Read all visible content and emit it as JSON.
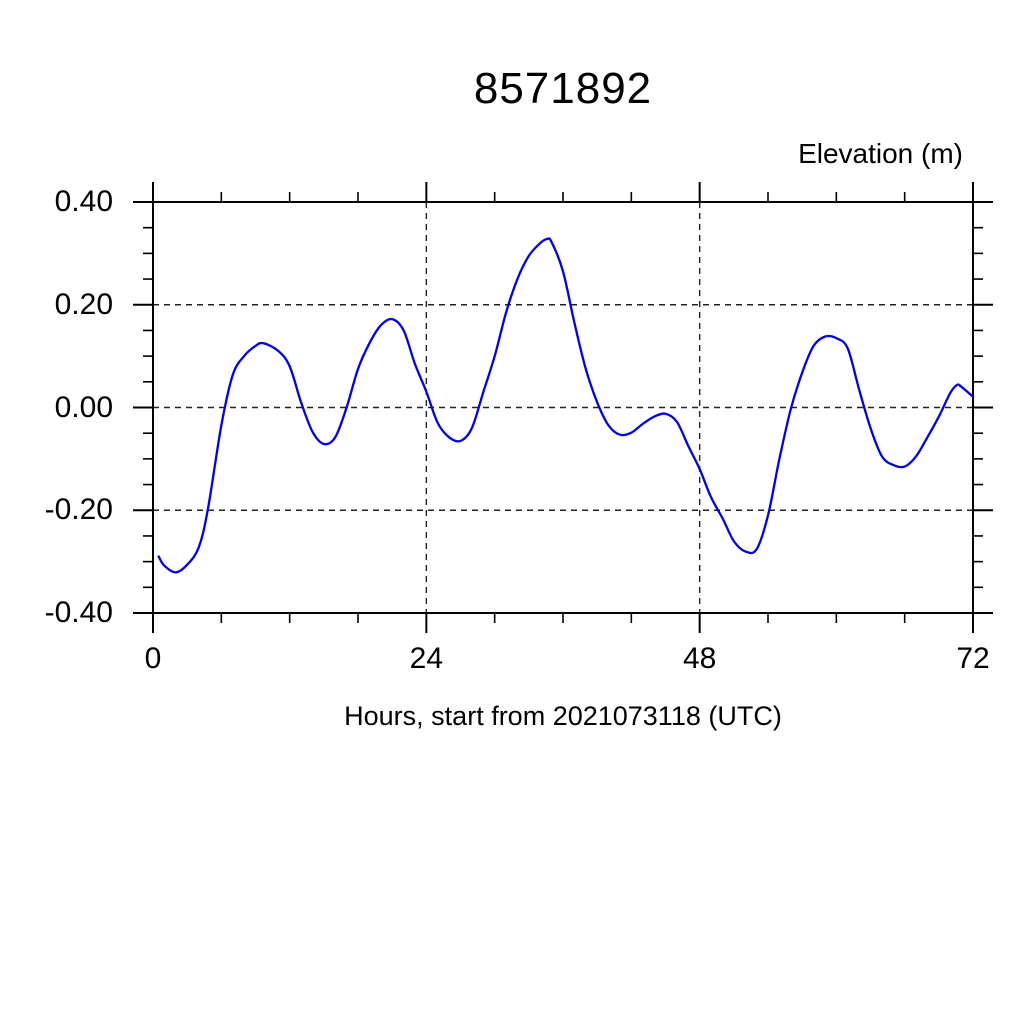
{
  "page": {
    "background": "#ffffff"
  },
  "header": {
    "title": "8571892"
  },
  "axes": {
    "right_top_label": "Elevation (m)",
    "x_label": "Hours, start from 2021073118 (UTC)",
    "x_major_ticks": [
      0,
      24,
      48,
      72
    ],
    "x_tick_labels": [
      "0",
      "24",
      "48",
      "72"
    ],
    "x_minor_step": 6,
    "x_range": [
      0,
      72
    ],
    "y_major_ticks": [
      0.4,
      0.2,
      0.0,
      -0.2,
      -0.4
    ],
    "y_tick_labels": [
      "0.40",
      "0.20",
      "0.00",
      "-0.20",
      "-0.40"
    ],
    "y_minor_step": 0.05,
    "y_range": [
      -0.4,
      0.4
    ],
    "grid_style": "dashed-at-major-ticks",
    "tick_direction": "outward-all-four-sides"
  },
  "style": {
    "line_color": "#0000ee",
    "frame_color": "#000000",
    "grid_color": "#222222",
    "text_color": "#000000",
    "background": "#ffffff"
  },
  "chart_data": {
    "type": "line",
    "title": "8571892",
    "xlabel": "Hours, start from 2021073118 (UTC)",
    "ylabel": "Elevation (m)",
    "xlim": [
      0,
      72
    ],
    "ylim": [
      -0.4,
      0.4
    ],
    "x_major_step": 24,
    "x_minor_step": 6,
    "y_major_step": 0.2,
    "y_minor_step": 0.05,
    "grid": "dashed gridlines at major ticks",
    "legend": "none",
    "series": [
      {
        "name": "elevation",
        "color": "#0000ee",
        "points": [
          [
            0.5,
            -0.29
          ],
          [
            1,
            -0.308
          ],
          [
            2,
            -0.321
          ],
          [
            3,
            -0.306
          ],
          [
            4,
            -0.273
          ],
          [
            4.8,
            -0.2
          ],
          [
            6,
            -0.035
          ],
          [
            7,
            0.063
          ],
          [
            8,
            0.1
          ],
          [
            9,
            0.12
          ],
          [
            9.7,
            0.125
          ],
          [
            11,
            0.11
          ],
          [
            12,
            0.08
          ],
          [
            13,
            0.01
          ],
          [
            14,
            -0.047
          ],
          [
            15,
            -0.071
          ],
          [
            16,
            -0.058
          ],
          [
            17,
            0.0
          ],
          [
            18,
            0.075
          ],
          [
            19,
            0.125
          ],
          [
            20,
            0.16
          ],
          [
            21,
            0.172
          ],
          [
            22,
            0.15
          ],
          [
            23,
            0.085
          ],
          [
            24,
            0.031
          ],
          [
            25,
            -0.03
          ],
          [
            26,
            -0.058
          ],
          [
            27,
            -0.065
          ],
          [
            28,
            -0.04
          ],
          [
            29,
            0.03
          ],
          [
            30,
            0.1
          ],
          [
            31,
            0.185
          ],
          [
            32,
            0.25
          ],
          [
            33,
            0.295
          ],
          [
            34,
            0.32
          ],
          [
            34.6,
            0.328
          ],
          [
            35,
            0.322
          ],
          [
            36,
            0.265
          ],
          [
            37,
            0.165
          ],
          [
            38,
            0.075
          ],
          [
            39,
            0.01
          ],
          [
            40,
            -0.035
          ],
          [
            41,
            -0.053
          ],
          [
            42,
            -0.049
          ],
          [
            43,
            -0.032
          ],
          [
            44,
            -0.018
          ],
          [
            45,
            -0.012
          ],
          [
            46,
            -0.028
          ],
          [
            47,
            -0.075
          ],
          [
            48,
            -0.12
          ],
          [
            49,
            -0.175
          ],
          [
            50,
            -0.215
          ],
          [
            51,
            -0.26
          ],
          [
            52,
            -0.28
          ],
          [
            53,
            -0.276
          ],
          [
            54,
            -0.21
          ],
          [
            55,
            -0.1
          ],
          [
            56,
            -0.003
          ],
          [
            57,
            0.068
          ],
          [
            58,
            0.12
          ],
          [
            59,
            0.138
          ],
          [
            60,
            0.135
          ],
          [
            61,
            0.115
          ],
          [
            62,
            0.035
          ],
          [
            63,
            -0.04
          ],
          [
            64,
            -0.095
          ],
          [
            65,
            -0.112
          ],
          [
            66,
            -0.115
          ],
          [
            67,
            -0.095
          ],
          [
            68,
            -0.058
          ],
          [
            69,
            -0.018
          ],
          [
            70,
            0.028
          ],
          [
            70.6,
            0.044
          ],
          [
            71,
            0.04
          ],
          [
            72,
            0.021
          ]
        ]
      }
    ]
  }
}
